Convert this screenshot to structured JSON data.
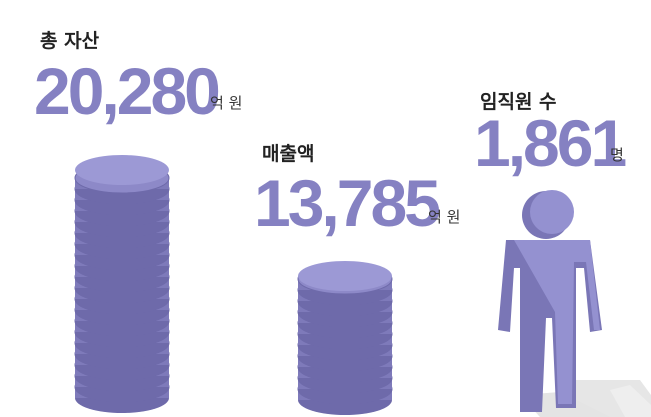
{
  "stats": [
    {
      "label": "총 자산",
      "value": "20,280",
      "unit": "억 원"
    },
    {
      "label": "매출액",
      "value": "13,785",
      "unit": "억 원"
    },
    {
      "label": "임직원 수",
      "value": "1,861",
      "unit": "명"
    }
  ]
}
